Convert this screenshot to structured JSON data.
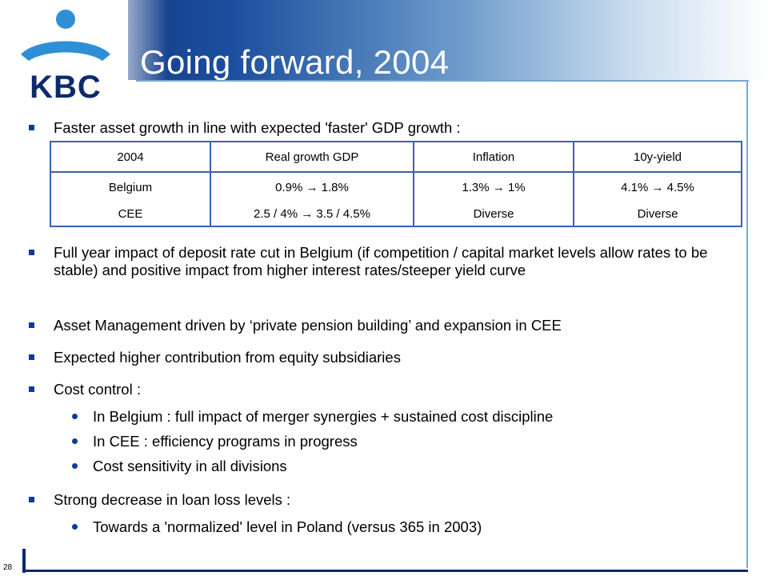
{
  "slide": {
    "title": "Going forward, 2004",
    "page_number": "28",
    "logo_text": "KBC"
  },
  "colors": {
    "header_dark": "#0d2a6b",
    "accent_blue": "#1b4e9e",
    "bullet_blue": "#0d3b9a",
    "table_border": "#3a62b0"
  },
  "bullets": [
    {
      "text": "Faster asset growth in line with expected 'faster' GDP growth :"
    },
    {
      "text": "Full year impact of deposit rate cut in Belgium  (if competition / capital market levels allow rates to be stable) and positive impact from higher interest rates/steeper yield curve"
    },
    {
      "text": "Asset Management driven by ‘private pension building’ and expansion in CEE"
    },
    {
      "text": "Expected higher contribution from equity subsidiaries"
    },
    {
      "text": "Cost control :",
      "sub": [
        "In Belgium : full impact of merger synergies + sustained cost discipline",
        "In CEE : efficiency programs in progress",
        "Cost sensitivity in all divisions"
      ]
    },
    {
      "text": "Strong decrease in loan loss levels :",
      "sub": [
        "Towards a 'normalized' level in Poland (versus 365 in 2003)"
      ]
    }
  ],
  "table": {
    "headers": [
      "2004",
      "Real growth GDP",
      "Inflation",
      "10y-yield"
    ],
    "rows": [
      [
        "Belgium",
        "0.9% → 1.8%",
        "1.3% → 1%",
        "4.1% → 4.5%"
      ],
      [
        "CEE",
        "2.5 / 4% → 3.5 / 4.5%",
        "Diverse",
        "Diverse"
      ]
    ]
  }
}
